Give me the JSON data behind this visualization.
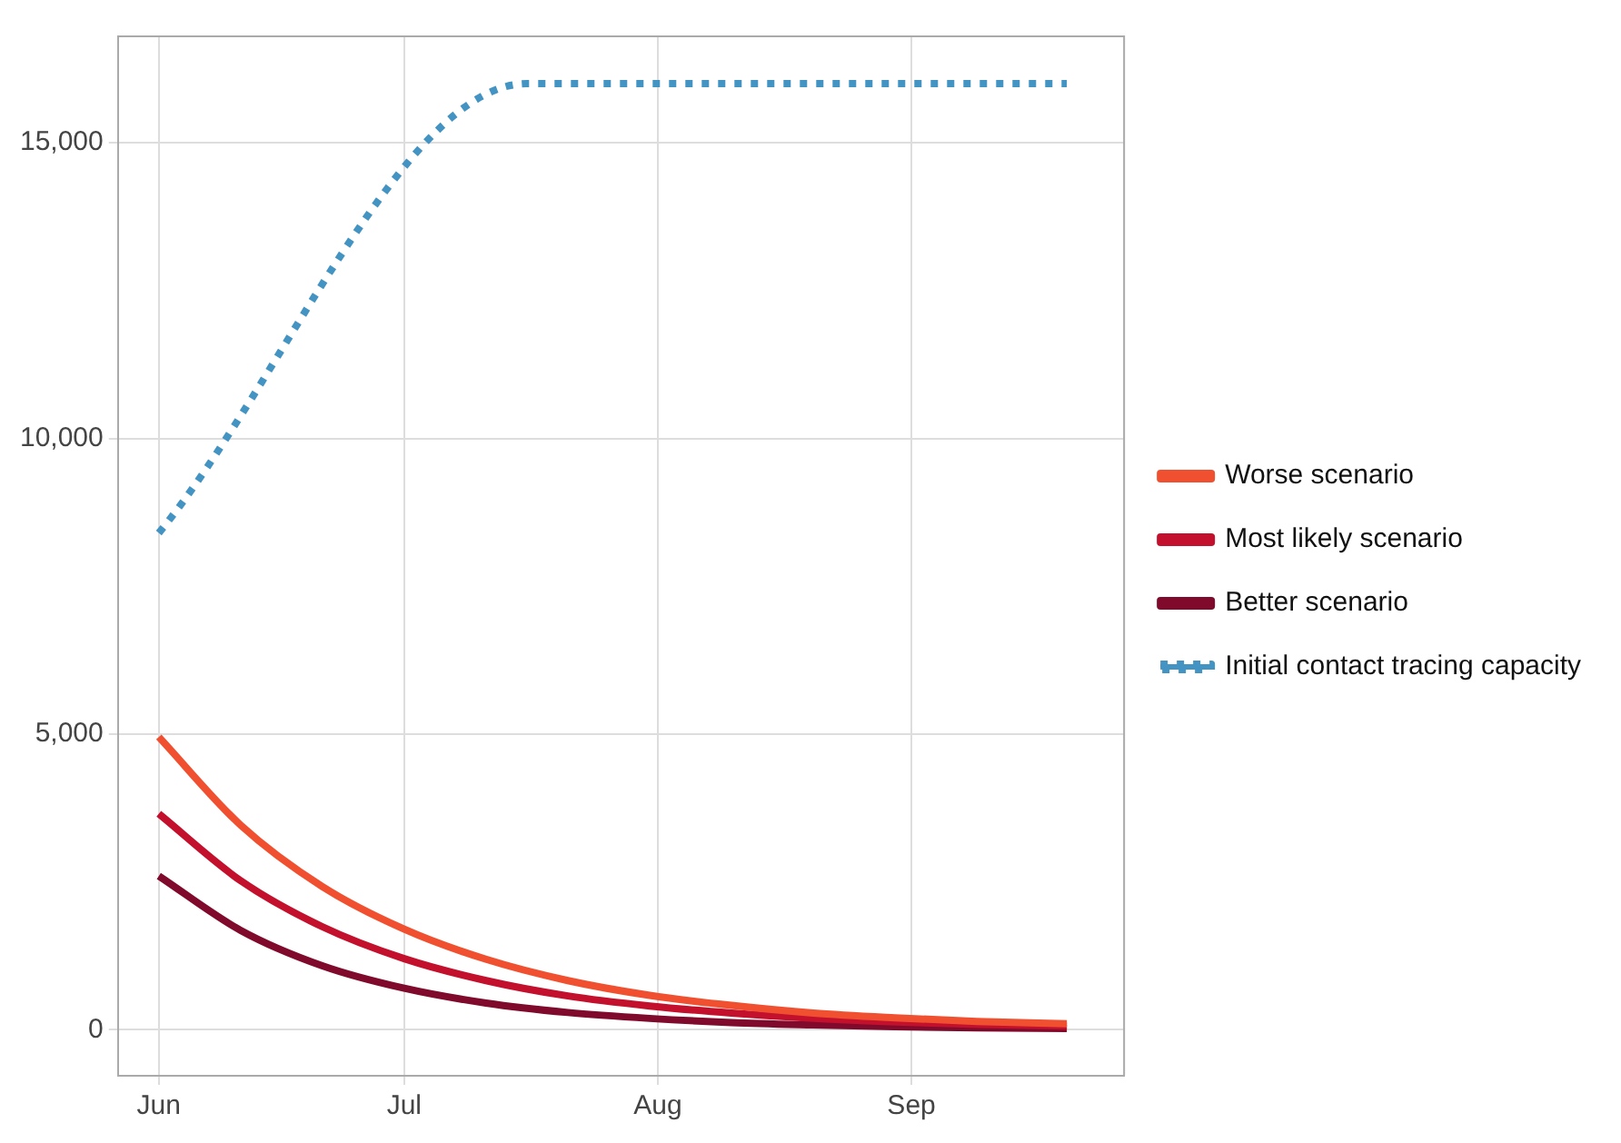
{
  "chart_data": {
    "type": "line",
    "x": [
      "--06-01",
      "--06-11",
      "--06-21",
      "--07-01",
      "--07-11",
      "--07-21",
      "--07-31",
      "--08-10",
      "--08-20",
      "--08-30",
      "--09-09",
      "--09-20"
    ],
    "series": [
      {
        "name": "Worse scenario",
        "color": "#f0502f",
        "values": [
          4950,
          3460,
          2420,
          1700,
          1190,
          830,
          580,
          410,
          280,
          200,
          140,
          100
        ]
      },
      {
        "name": "Most likely scenario",
        "color": "#c3102c",
        "values": [
          3650,
          2520,
          1740,
          1200,
          830,
          570,
          400,
          280,
          190,
          130,
          90,
          60
        ]
      },
      {
        "name": "Better scenario",
        "color": "#7f0a2c",
        "values": [
          2600,
          1680,
          1080,
          700,
          450,
          290,
          190,
          120,
          80,
          50,
          30,
          20
        ]
      },
      {
        "name": "Initial contact tracing capacity",
        "color": "#4393c3",
        "line_style": "dotted",
        "x": [
          "--06-01",
          "--07-16",
          "--09-20"
        ],
        "values": [
          8400,
          16000,
          16000
        ]
      }
    ],
    "xlim": [
      "--05-27",
      "--09-27"
    ],
    "xticks": [
      {
        "value": "--06-01",
        "label": "Jun"
      },
      {
        "value": "--07-01",
        "label": "Jul"
      },
      {
        "value": "--08-01",
        "label": "Aug"
      },
      {
        "value": "--09-01",
        "label": "Sep"
      }
    ],
    "ylim": [
      -780,
      16800
    ],
    "yticks": [
      {
        "value": 0,
        "label": "0"
      },
      {
        "value": 5000,
        "label": "5,000"
      },
      {
        "value": 10000,
        "label": "10,000"
      },
      {
        "value": 15000,
        "label": "15,000"
      }
    ],
    "grid": true,
    "legend": "right",
    "marker": "none",
    "line_style": "solid"
  }
}
